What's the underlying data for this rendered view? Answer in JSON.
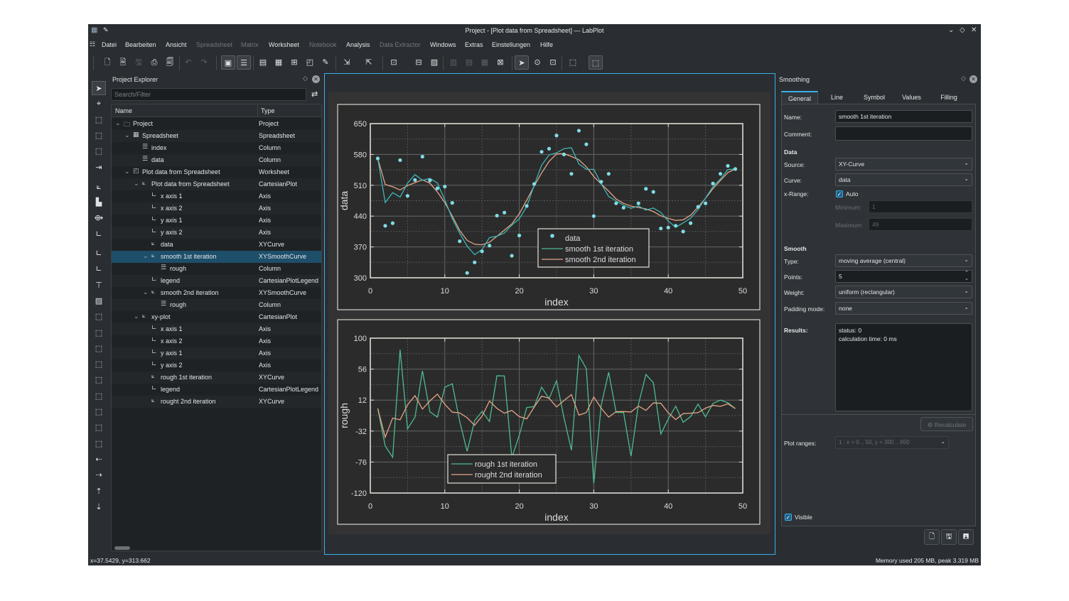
{
  "window": {
    "title": "Project - [Plot data from Spreadsheet] — LabPlot",
    "controls": [
      "⌄",
      "◇",
      "✕"
    ]
  },
  "menu": [
    {
      "label": "Datei",
      "enabled": true
    },
    {
      "label": "Bearbeiten",
      "enabled": true
    },
    {
      "label": "Ansicht",
      "enabled": true
    },
    {
      "label": "Spreadsheet",
      "enabled": false
    },
    {
      "label": "Matrix",
      "enabled": false
    },
    {
      "label": "Worksheet",
      "enabled": true
    },
    {
      "label": "Notebook",
      "enabled": false
    },
    {
      "label": "Analysis",
      "enabled": true
    },
    {
      "label": "Data Extractor",
      "enabled": false
    },
    {
      "label": "Windows",
      "enabled": true
    },
    {
      "label": "Extras",
      "enabled": true
    },
    {
      "label": "Einstellungen",
      "enabled": true
    },
    {
      "label": "Hilfe",
      "enabled": true
    }
  ],
  "toolbar": [
    {
      "icon": "new-project-icon",
      "g": "🗋"
    },
    {
      "icon": "open-icon",
      "g": "🗎"
    },
    {
      "icon": "save-icon",
      "g": "🖫",
      "dis": true
    },
    {
      "icon": "print-icon",
      "g": "⎙"
    },
    {
      "icon": "print-preview-icon",
      "g": "🗐"
    },
    {
      "icon": "undo-icon",
      "g": "↶",
      "dis": true
    },
    {
      "icon": "redo-icon",
      "g": "↷",
      "dis": true
    },
    {
      "icon": "tree-view-icon",
      "g": "▣",
      "on": true
    },
    {
      "icon": "properties-icon",
      "g": "☰",
      "on": true
    },
    {
      "icon": "new-spreadsheet-icon",
      "g": "▤"
    },
    {
      "icon": "new-matrix-icon",
      "g": "▦"
    },
    {
      "icon": "new-data-extractor-icon",
      "g": "⊞"
    },
    {
      "icon": "new-worksheet-icon",
      "g": "◰"
    },
    {
      "icon": "new-note-icon",
      "g": "✎"
    },
    {
      "icon": "import-icon",
      "g": "⇲"
    },
    {
      "icon": "export-icon",
      "g": "⇱"
    },
    {
      "icon": "layout-icon",
      "g": "⊡"
    },
    {
      "icon": "fit-page-icon",
      "g": "⊟"
    },
    {
      "icon": "image-icon",
      "g": "▨"
    },
    {
      "icon": "layout-vertical-icon",
      "g": "▥",
      "dis": true
    },
    {
      "icon": "layout-horizontal-icon",
      "g": "▤",
      "dis": true
    },
    {
      "icon": "layout-grid-icon",
      "g": "▦",
      "dis": true
    },
    {
      "icon": "break-layout-icon",
      "g": "⊠"
    },
    {
      "icon": "select-cursor-icon",
      "g": "➤",
      "on": true
    },
    {
      "icon": "navigate-mouse-icon",
      "g": "⊙"
    },
    {
      "icon": "zoom-select-icon",
      "g": "⊡"
    },
    {
      "icon": "zoom-icon",
      "g": "⬚"
    },
    {
      "icon": "cartesian-plot-icon",
      "g": "⬚",
      "on": true
    }
  ],
  "vtools": [
    "select-arrow-icon",
    "crosshair-icon",
    "zoom-selection-icon",
    "zoom-x-icon",
    "zoom-y-icon",
    "shift-x-icon",
    "add-curve-icon",
    "histogram-icon",
    "fit-icon",
    "axis-icon",
    "add-axis-icon",
    "add-legend-icon",
    "text-label-icon",
    "image-icon",
    "scale-auto-icon",
    "scale-auto-x-icon",
    "scale-auto-y-icon",
    "zoom-in-icon",
    "zoom-out-icon",
    "zoom-in-x-icon",
    "zoom-out-x-icon",
    "zoom-in-y-icon",
    "zoom-out-y-icon",
    "shift-left-icon",
    "shift-right-icon",
    "shift-up-icon",
    "shift-down-icon"
  ],
  "explorer": {
    "title": "Project Explorer",
    "search_placeholder": "Search/Filter",
    "col_name": "Name",
    "col_type": "Type",
    "rows": [
      {
        "name": "Project",
        "type": "Project",
        "level": 0,
        "exp": true,
        "icon": "🗀"
      },
      {
        "name": "Spreadsheet",
        "type": "Spreadsheet",
        "level": 1,
        "exp": true,
        "icon": "▦"
      },
      {
        "name": "index",
        "type": "Column",
        "level": 2,
        "icon": "☰"
      },
      {
        "name": "data",
        "type": "Column",
        "level": 2,
        "icon": "☰"
      },
      {
        "name": "Plot data from Spreadsheet",
        "type": "Worksheet",
        "level": 1,
        "exp": true,
        "icon": "◰"
      },
      {
        "name": "Plot data from Spreadsheet",
        "type": "CartesianPlot",
        "level": 2,
        "exp": true,
        "icon": "⟀"
      },
      {
        "name": "x axis 1",
        "type": "Axis",
        "level": 3,
        "icon": "∟"
      },
      {
        "name": "x axis 2",
        "type": "Axis",
        "level": 3,
        "icon": "∟"
      },
      {
        "name": "y axis 1",
        "type": "Axis",
        "level": 3,
        "icon": "∟"
      },
      {
        "name": "y axis 2",
        "type": "Axis",
        "level": 3,
        "icon": "∟"
      },
      {
        "name": "data",
        "type": "XYCurve",
        "level": 3,
        "icon": "⟀"
      },
      {
        "name": "smooth 1st iteration",
        "type": "XYSmoothCurve",
        "level": 3,
        "exp": true,
        "icon": "⟀",
        "sel": true
      },
      {
        "name": "rough",
        "type": "Column",
        "level": 4,
        "icon": "☰"
      },
      {
        "name": "legend",
        "type": "CartesianPlotLegend",
        "level": 3,
        "icon": "∟"
      },
      {
        "name": "smooth 2nd iteration",
        "type": "XYSmoothCurve",
        "level": 3,
        "exp": true,
        "icon": "⟀"
      },
      {
        "name": "rough",
        "type": "Column",
        "level": 4,
        "icon": "☰"
      },
      {
        "name": "xy-plot",
        "type": "CartesianPlot",
        "level": 2,
        "exp": true,
        "icon": "⟀"
      },
      {
        "name": "x axis 1",
        "type": "Axis",
        "level": 3,
        "icon": "∟"
      },
      {
        "name": "x axis 2",
        "type": "Axis",
        "level": 3,
        "icon": "∟"
      },
      {
        "name": "y axis 1",
        "type": "Axis",
        "level": 3,
        "icon": "∟"
      },
      {
        "name": "y axis 2",
        "type": "Axis",
        "level": 3,
        "icon": "∟"
      },
      {
        "name": "rough 1st iteration",
        "type": "XYCurve",
        "level": 3,
        "icon": "⟀"
      },
      {
        "name": "legend",
        "type": "CartesianPlotLegend",
        "level": 3,
        "icon": "∟"
      },
      {
        "name": "rought 2nd iteration",
        "type": "XYCurve",
        "level": 3,
        "icon": "⟀"
      }
    ]
  },
  "smoothing": {
    "title": "Smoothing",
    "tabs": [
      "General",
      "Line",
      "Symbol",
      "Values",
      "Filling"
    ],
    "active_tab": "General",
    "name_label": "Name:",
    "name_value": "smooth 1st iteration",
    "comment_label": "Comment:",
    "comment_value": "",
    "data_heading": "Data",
    "source_label": "Source:",
    "source_value": "XY-Curve",
    "curve_label": "Curve:",
    "curve_value": "data",
    "xrange_label": "x-Range:",
    "auto_label": "Auto",
    "auto_checked": true,
    "min_label": "Minimum:",
    "min_value": "1",
    "max_label": "Maximum:",
    "max_value": "49",
    "smooth_heading": "Smooth",
    "type_label": "Type:",
    "type_value": "moving average (central)",
    "points_label": "Points:",
    "points_value": "5",
    "weight_label": "Weight:",
    "weight_value": "uniform (rectangular)",
    "padding_label": "Padding mode:",
    "padding_value": "none",
    "results_label": "Results:",
    "results_lines": [
      "status: 0",
      "calculation time: 0 ms"
    ],
    "recalculate_label": "Recalculate",
    "plot_ranges_label": "Plot ranges:",
    "plot_ranges_value": "1 : x = 0 .. 50, y = 300 .. 650",
    "visible_label": "Visible",
    "visible_checked": true
  },
  "status": {
    "coords": "x=37.5429, y=313.662",
    "memory": "Memory used 205 MB, peak 3.319 MB"
  },
  "colors": {
    "data_points": "#7fdde6",
    "smooth1": "#3fb6b8",
    "smooth2": "#e3a587",
    "rough1": "#4dbb8f",
    "rough2": "#e3a587",
    "accent": "#3daee9"
  },
  "chart_data": [
    {
      "type": "scatter+line",
      "xlabel": "index",
      "ylabel": "data",
      "xlim": [
        0,
        50
      ],
      "ylim": [
        300,
        650
      ],
      "xticks": [
        "0",
        "10",
        "20",
        "30",
        "40",
        "50"
      ],
      "yticks": [
        "650",
        "580",
        "510",
        "440",
        "370",
        "300"
      ],
      "grid": true,
      "legend": "bottom-center",
      "smoothing": {
        "method": "moving average (central)",
        "points": 5
      },
      "series": [
        {
          "name": "data",
          "style": "points",
          "x": [
            1,
            2,
            3,
            4,
            5,
            6,
            7,
            8,
            9,
            10,
            11,
            12,
            13,
            14,
            15,
            16,
            17,
            18,
            19,
            20,
            21,
            22,
            23,
            24,
            25,
            26,
            27,
            28,
            29,
            30,
            31,
            32,
            33,
            34,
            35,
            36,
            37,
            38,
            39,
            40,
            41,
            42,
            43,
            44,
            45,
            46,
            47,
            48,
            49
          ],
          "y": [
            571,
            418,
            424,
            567,
            486,
            522,
            575,
            521,
            503,
            507,
            470,
            383,
            311,
            335,
            360,
            373,
            441,
            448,
            350,
            396,
            463,
            513,
            586,
            593,
            623,
            580,
            536,
            634,
            603,
            440,
            518,
            536,
            469,
            459,
            390,
            469,
            502,
            495,
            412,
            414,
            418,
            405,
            424,
            461,
            469,
            514,
            536,
            554,
            547
          ]
        },
        {
          "name": "smooth 1st iteration",
          "style": "line"
        },
        {
          "name": "smooth 2nd iteration",
          "style": "line"
        }
      ]
    },
    {
      "type": "line",
      "xlabel": "index",
      "ylabel": "rough",
      "xlim": [
        0,
        50
      ],
      "ylim": [
        -120,
        100
      ],
      "xticks": [
        "0",
        "10",
        "20",
        "30",
        "40",
        "50"
      ],
      "yticks": [
        "100",
        "56",
        "12",
        "-32",
        "-76",
        "-120"
      ],
      "grid": true,
      "legend": "bottom-left",
      "series": [
        {
          "name": "rough 1st iteration"
        },
        {
          "name": "rought 2nd iteration"
        }
      ]
    }
  ]
}
